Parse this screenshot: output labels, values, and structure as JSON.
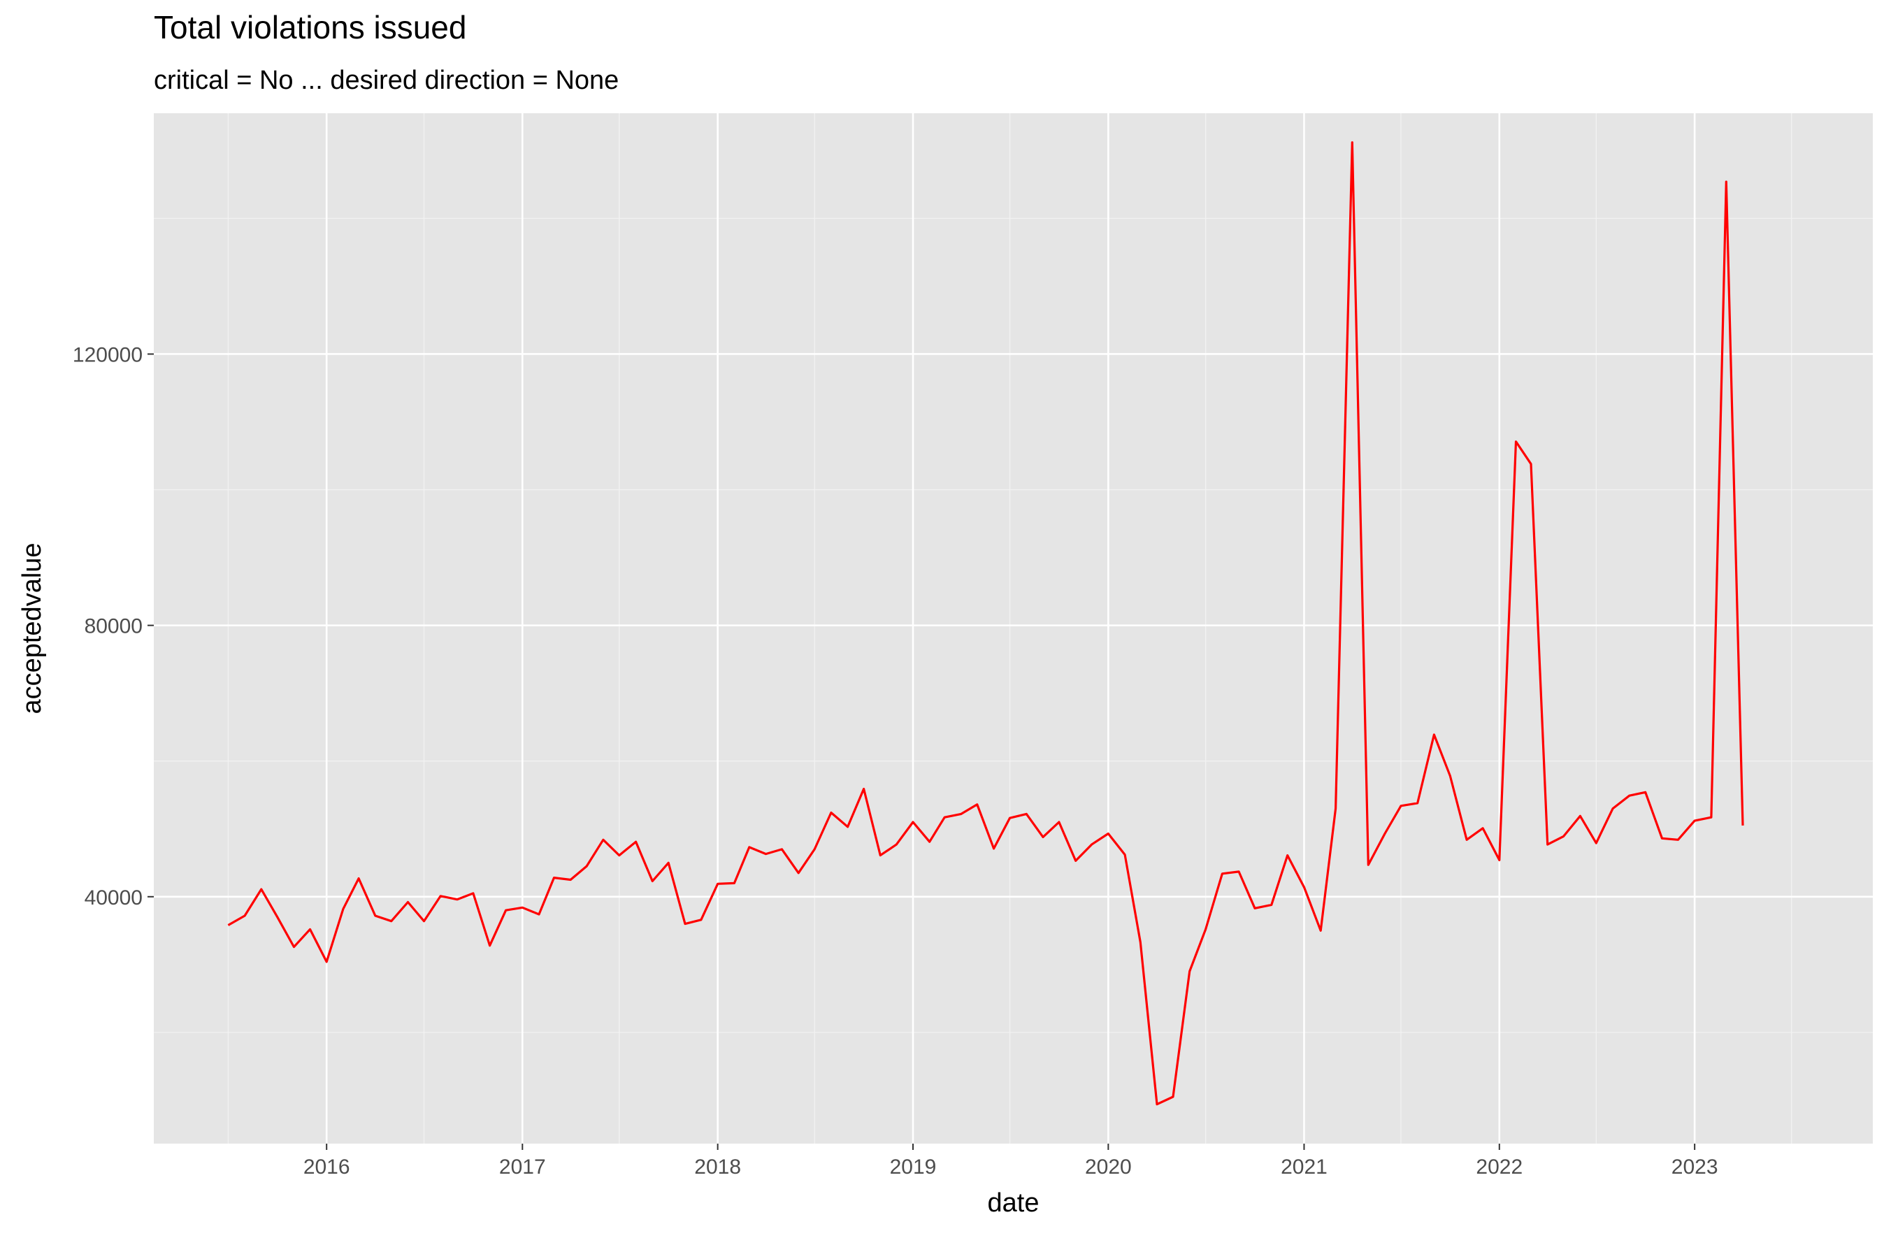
{
  "chart_data": {
    "type": "line",
    "title": "Total violations issued",
    "subtitle": "critical = No ... desired direction = None",
    "xlabel": "date",
    "ylabel": "acceptedvalue",
    "xlim": [
      "2015-02-12",
      "2023-11-30"
    ],
    "ylim": [
      3600,
      155500
    ],
    "x_ticks": [
      "2016-01-01",
      "2017-01-01",
      "2018-01-01",
      "2019-01-01",
      "2020-01-01",
      "2021-01-01",
      "2022-01-01",
      "2023-01-01"
    ],
    "x_tick_labels": [
      "2016",
      "2017",
      "2018",
      "2019",
      "2020",
      "2021",
      "2022",
      "2023"
    ],
    "y_ticks": [
      40000,
      80000,
      120000
    ],
    "y_tick_labels": [
      "40000",
      "80000",
      "120000"
    ],
    "grid": true,
    "colors": {
      "panel_background": "#e5e5e5",
      "grid_major": "#ffffff",
      "grid_minor": "#f2f2f2",
      "axis_text": "#4d4d4d",
      "series": "#ff0000"
    },
    "series": [
      {
        "color": "#ff0000",
        "x": [
          "2015-07-01",
          "2015-08-01",
          "2015-09-01",
          "2015-10-01",
          "2015-11-01",
          "2015-12-01",
          "2016-01-01",
          "2016-02-01",
          "2016-03-01",
          "2016-04-01",
          "2016-05-01",
          "2016-06-01",
          "2016-07-01",
          "2016-08-01",
          "2016-09-01",
          "2016-10-01",
          "2016-11-01",
          "2016-12-01",
          "2017-01-01",
          "2017-02-01",
          "2017-03-01",
          "2017-04-01",
          "2017-05-01",
          "2017-06-01",
          "2017-07-01",
          "2017-08-01",
          "2017-09-01",
          "2017-10-01",
          "2017-11-01",
          "2017-12-01",
          "2018-01-01",
          "2018-02-01",
          "2018-03-01",
          "2018-04-01",
          "2018-05-01",
          "2018-06-01",
          "2018-07-01",
          "2018-08-01",
          "2018-09-01",
          "2018-10-01",
          "2018-11-01",
          "2018-12-01",
          "2019-01-01",
          "2019-02-01",
          "2019-03-01",
          "2019-04-01",
          "2019-05-01",
          "2019-06-01",
          "2019-07-01",
          "2019-08-01",
          "2019-09-01",
          "2019-10-01",
          "2019-11-01",
          "2019-12-01",
          "2020-01-01",
          "2020-02-01",
          "2020-03-01",
          "2020-04-01",
          "2020-05-01",
          "2020-06-01",
          "2020-07-01",
          "2020-08-01",
          "2020-09-01",
          "2020-10-01",
          "2020-11-01",
          "2020-12-01",
          "2021-01-01",
          "2021-02-01",
          "2021-03-01",
          "2021-04-01",
          "2021-05-01",
          "2021-06-01",
          "2021-07-01",
          "2021-08-01",
          "2021-09-01",
          "2021-10-01",
          "2021-11-01",
          "2021-12-01",
          "2022-01-01",
          "2022-02-01",
          "2022-03-01",
          "2022-04-01",
          "2022-05-01",
          "2022-06-01",
          "2022-07-01",
          "2022-08-01",
          "2022-09-01",
          "2022-10-01",
          "2022-11-01",
          "2022-12-01",
          "2023-01-01",
          "2023-02-01",
          "2023-03-01",
          "2023-04-01"
        ],
        "values": [
          35800,
          37200,
          41100,
          37000,
          32600,
          35200,
          30400,
          38200,
          42700,
          37200,
          36400,
          39200,
          36400,
          40100,
          39600,
          40500,
          32800,
          38000,
          38400,
          37400,
          42800,
          42500,
          44500,
          48400,
          46100,
          48100,
          42300,
          45000,
          36000,
          36600,
          41900,
          42000,
          47300,
          46300,
          47000,
          43500,
          47000,
          52400,
          50300,
          55900,
          46100,
          47700,
          51000,
          48100,
          51700,
          52200,
          53600,
          47100,
          51600,
          52200,
          48800,
          51000,
          45300,
          47700,
          49300,
          46200,
          33300,
          9400,
          10500,
          29000,
          35200,
          43400,
          43700,
          38300,
          38800,
          46100,
          41400,
          35000,
          53000,
          151200,
          44700,
          49300,
          53400,
          53800,
          63900,
          57800,
          48400,
          50100,
          45400,
          107100,
          103800,
          47700,
          48900,
          51900,
          47900,
          53000,
          54900,
          55400,
          48600,
          48400,
          51200,
          51700,
          145400,
          50500
        ]
      }
    ]
  }
}
